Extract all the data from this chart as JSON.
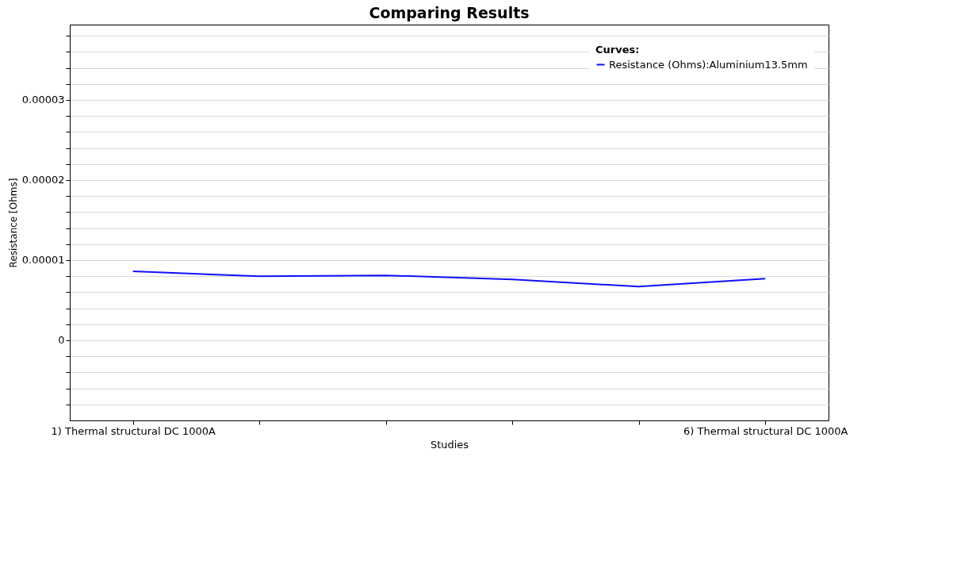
{
  "chart_data": {
    "type": "line",
    "title": "Comparing Results",
    "xlabel": "Studies",
    "ylabel": "Resistance [Ohms]",
    "legend_title": "Curves:",
    "categories": [
      "1) Thermal structural DC 1000A",
      null,
      null,
      null,
      null,
      "6) Thermal structural DC 1000A"
    ],
    "series": [
      {
        "name": "Resistance (Ohms):Aluminium13.5mm",
        "color": "#1010ff",
        "values": [
          8.6e-06,
          8e-06,
          8.1e-06,
          7.6e-06,
          6.7e-06,
          7.7e-06
        ]
      }
    ],
    "ylim": [
      -1e-05,
      3.94e-05
    ],
    "yticks": [
      {
        "value": -8e-06,
        "label": null
      },
      {
        "value": -6e-06,
        "label": null
      },
      {
        "value": -4e-06,
        "label": null
      },
      {
        "value": -2e-06,
        "label": null
      },
      {
        "value": 0,
        "label": "0"
      },
      {
        "value": 2e-06,
        "label": null
      },
      {
        "value": 4e-06,
        "label": null
      },
      {
        "value": 6e-06,
        "label": null
      },
      {
        "value": 8e-06,
        "label": null
      },
      {
        "value": 1e-05,
        "label": "0.00001"
      },
      {
        "value": 1.2e-05,
        "label": null
      },
      {
        "value": 1.4e-05,
        "label": null
      },
      {
        "value": 1.6e-05,
        "label": null
      },
      {
        "value": 1.8e-05,
        "label": null
      },
      {
        "value": 2e-05,
        "label": "0.00002"
      },
      {
        "value": 2.2e-05,
        "label": null
      },
      {
        "value": 2.4e-05,
        "label": null
      },
      {
        "value": 2.6e-05,
        "label": null
      },
      {
        "value": 2.8e-05,
        "label": null
      },
      {
        "value": 3e-05,
        "label": "0.00003"
      },
      {
        "value": 3.2e-05,
        "label": null
      },
      {
        "value": 3.4e-05,
        "label": null
      },
      {
        "value": 3.6e-05,
        "label": null
      },
      {
        "value": 3.8e-05,
        "label": null
      }
    ],
    "grid": "y",
    "legend": "top right",
    "marker": "none",
    "line_style": "solid"
  }
}
